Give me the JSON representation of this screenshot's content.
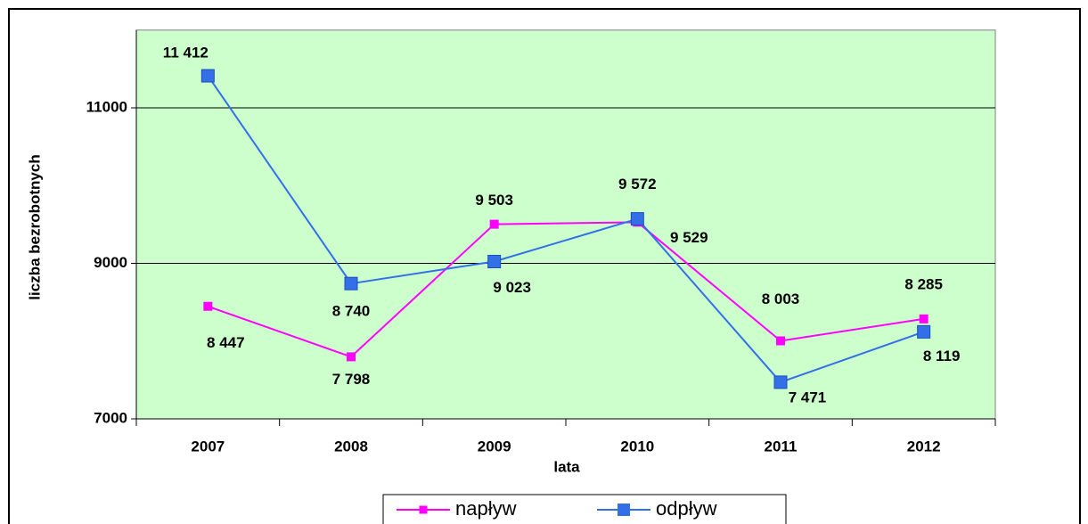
{
  "chart_data": {
    "type": "line",
    "x_label": "lata",
    "y_label": "liczba bezrobotnych",
    "categories": [
      "2007",
      "2008",
      "2009",
      "2010",
      "2011",
      "2012"
    ],
    "series": [
      {
        "name": "napływ",
        "color": "#ff00ff",
        "marker": "square-small",
        "values": [
          8447,
          7798,
          9503,
          9529,
          8003,
          8285
        ],
        "value_labels": [
          "8 447",
          "7 798",
          "9 503",
          "9 529",
          "8 003",
          "8 285"
        ]
      },
      {
        "name": "odpływ",
        "color": "#3370e8",
        "marker": "square",
        "values": [
          11412,
          8740,
          9023,
          9572,
          7471,
          8119
        ],
        "value_labels": [
          "11 412",
          "8 740",
          "9 023",
          "9 572",
          "7 471",
          "8 119"
        ]
      }
    ],
    "ylim": [
      7000,
      12000
    ],
    "yticks": [
      7000,
      9000,
      11000
    ],
    "grid": true,
    "plot_background": "#ccffcc"
  }
}
